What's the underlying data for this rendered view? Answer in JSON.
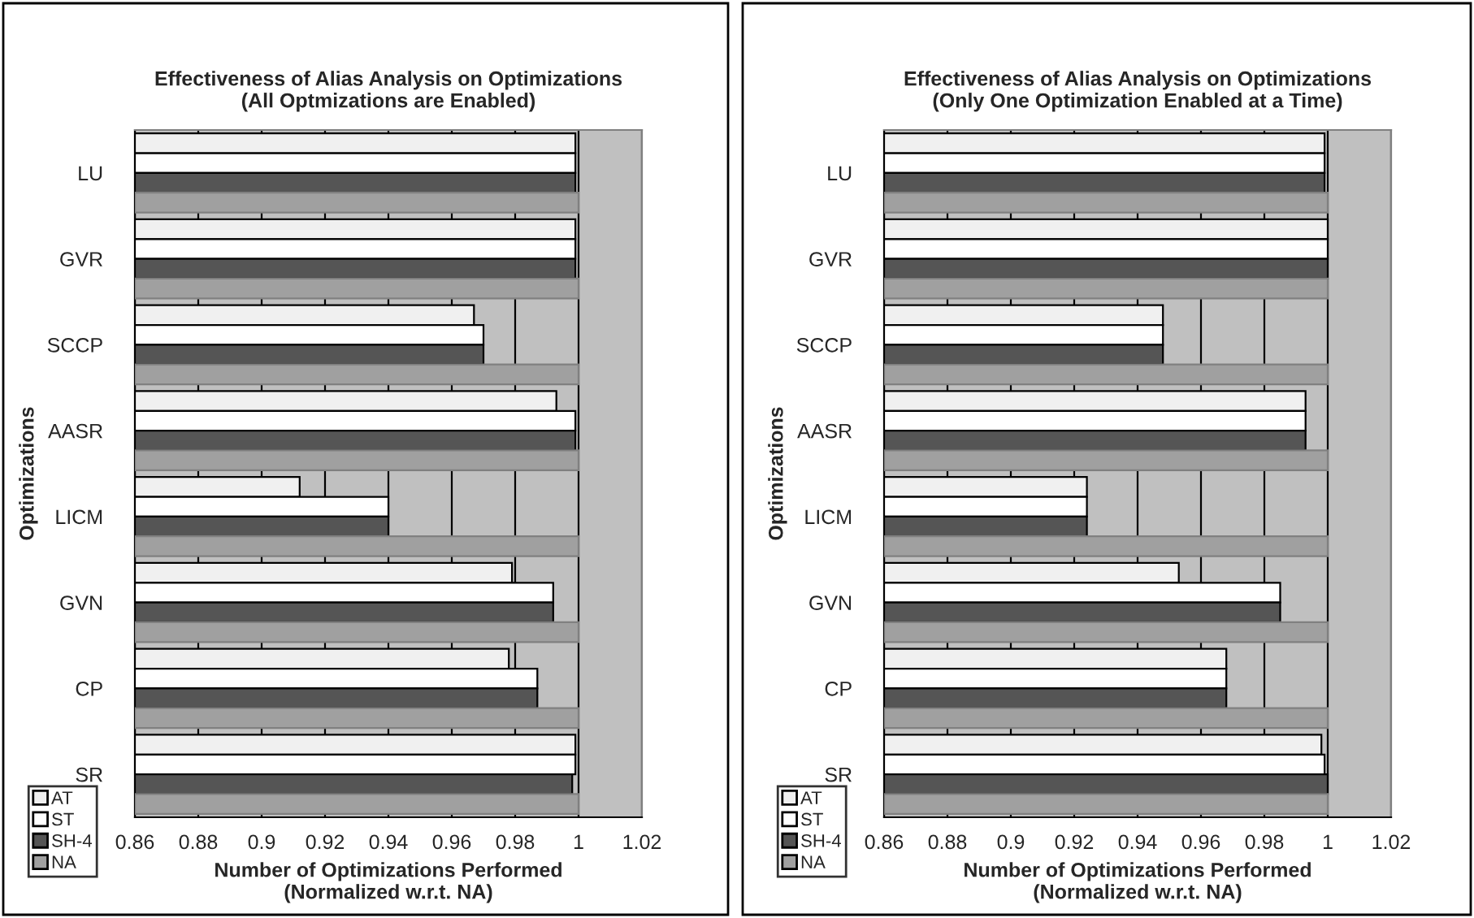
{
  "chart_data": [
    {
      "type": "bar",
      "orientation": "horizontal",
      "title": "Effectiveness of Alias Analysis on Optimizations\n(All Optmizations are Enabled)",
      "xlabel": "Number of Optimizations Performed\n(Normalized w.r.t. NA)",
      "ylabel": "Optimizations",
      "categories": [
        "LU",
        "GVR",
        "SCCP",
        "AASR",
        "LICM",
        "GVN",
        "CP",
        "SR"
      ],
      "series": [
        {
          "name": "AT",
          "color": "#f0f0f0",
          "values": [
            0.999,
            0.999,
            0.967,
            0.993,
            0.912,
            0.979,
            0.978,
            0.999
          ]
        },
        {
          "name": "ST",
          "color": "#ffffff",
          "values": [
            0.999,
            0.999,
            0.97,
            0.999,
            0.94,
            0.992,
            0.987,
            0.999
          ]
        },
        {
          "name": "SH-4",
          "color": "#555555",
          "values": [
            0.999,
            0.999,
            0.97,
            0.999,
            0.94,
            0.992,
            0.987,
            0.998
          ]
        },
        {
          "name": "NA",
          "color": "#a0a0a0",
          "values": [
            1,
            1,
            1,
            1,
            1,
            1,
            1,
            1
          ]
        }
      ],
      "xlim": [
        0.86,
        1.02
      ],
      "xticks": [
        0.86,
        0.88,
        0.9,
        0.92,
        0.94,
        0.96,
        0.98,
        1,
        1.02
      ],
      "grid": "x",
      "legend": "bottom left"
    },
    {
      "type": "bar",
      "orientation": "horizontal",
      "title": "Effectiveness of Alias Analysis on Optimizations\n(Only One Optimization Enabled at a Time)",
      "xlabel": "Number of Optimizations Performed\n(Normalized w.r.t. NA)",
      "ylabel": "Optimizations",
      "categories": [
        "LU",
        "GVR",
        "SCCP",
        "AASR",
        "LICM",
        "GVN",
        "CP",
        "SR"
      ],
      "series": [
        {
          "name": "AT",
          "color": "#f0f0f0",
          "values": [
            0.999,
            1,
            0.948,
            0.993,
            0.924,
            0.953,
            0.968,
            0.998
          ]
        },
        {
          "name": "ST",
          "color": "#ffffff",
          "values": [
            0.999,
            1,
            0.948,
            0.993,
            0.924,
            0.985,
            0.968,
            0.999
          ]
        },
        {
          "name": "SH-4",
          "color": "#555555",
          "values": [
            0.999,
            1,
            0.948,
            0.993,
            0.924,
            0.985,
            0.968,
            1
          ]
        },
        {
          "name": "NA",
          "color": "#a0a0a0",
          "values": [
            1,
            1,
            1,
            1,
            1,
            1,
            1,
            1
          ]
        }
      ],
      "xlim": [
        0.86,
        1.02
      ],
      "xticks": [
        0.86,
        0.88,
        0.9,
        0.92,
        0.94,
        0.96,
        0.98,
        1,
        1.02
      ],
      "grid": "x",
      "legend": "bottom left"
    }
  ]
}
